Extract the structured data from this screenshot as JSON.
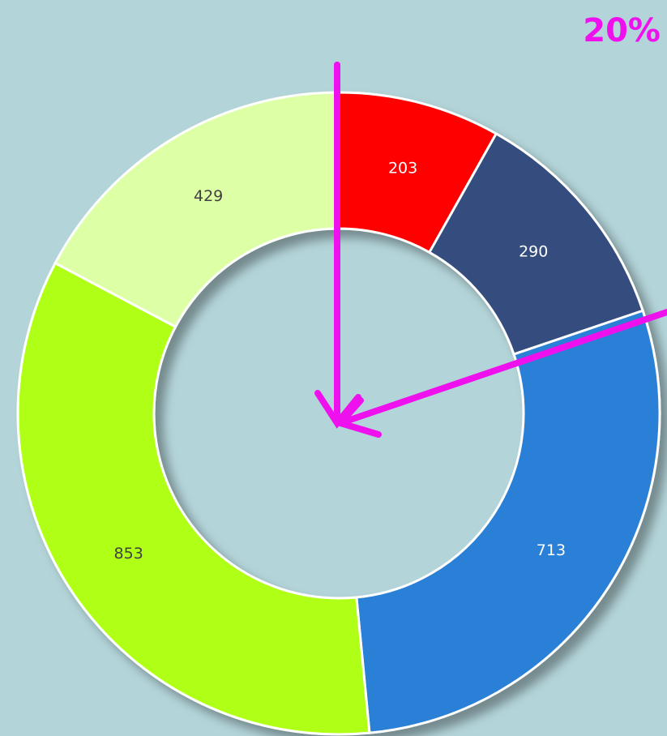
{
  "chart_data": {
    "type": "donut",
    "values": [
      203,
      290,
      713,
      853,
      429
    ],
    "colors": [
      "#ff0000",
      "#354d7e",
      "#2a7fd6",
      "#b0ff12",
      "#ddffa6"
    ],
    "annotation": "20%"
  }
}
